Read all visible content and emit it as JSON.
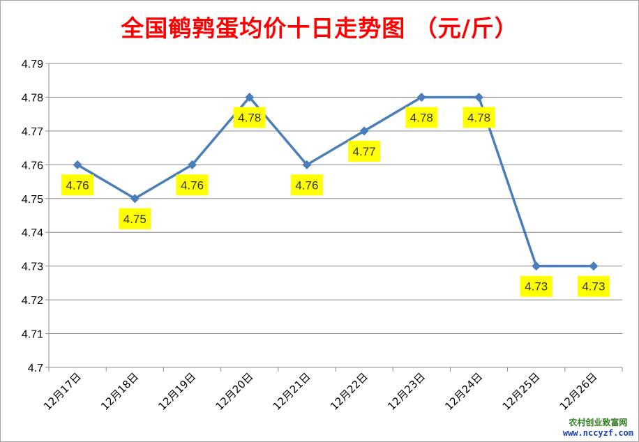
{
  "chart_data": {
    "type": "line",
    "title": "全国鹌鹑蛋均价十日走势图 （元/斤）",
    "categories": [
      "12月17日",
      "12月18日",
      "12月19日",
      "12月20日",
      "12月21日",
      "12月22日",
      "12月23日",
      "12月24日",
      "12月25日",
      "12月26日"
    ],
    "series": [
      {
        "values": [
          4.76,
          4.75,
          4.76,
          4.78,
          4.76,
          4.77,
          4.78,
          4.78,
          4.73,
          4.73
        ]
      }
    ],
    "data_labels": [
      "4.76",
      "4.75",
      "4.76",
      "4.78",
      "4.76",
      "4.77",
      "4.78",
      "4.78",
      "4.73",
      "4.73"
    ],
    "ylim": [
      4.7,
      4.79
    ],
    "yticks": [
      "4.79",
      "4.78",
      "4.77",
      "4.76",
      "4.75",
      "4.74",
      "4.73",
      "4.72",
      "4.71",
      "4.7"
    ],
    "ytick_values": [
      4.79,
      4.78,
      4.77,
      4.76,
      4.75,
      4.74,
      4.73,
      4.72,
      4.71,
      4.7
    ],
    "grid": true,
    "legend": "none",
    "colors": {
      "line": "#4a7ebb",
      "marker": "#4a7ebb",
      "label_bg": "#ffff00",
      "title": "#ff0000",
      "grid": "#8c8c8c"
    }
  },
  "watermark": {
    "name": "农村创业致富网",
    "url": "www.nccyzf.com"
  }
}
